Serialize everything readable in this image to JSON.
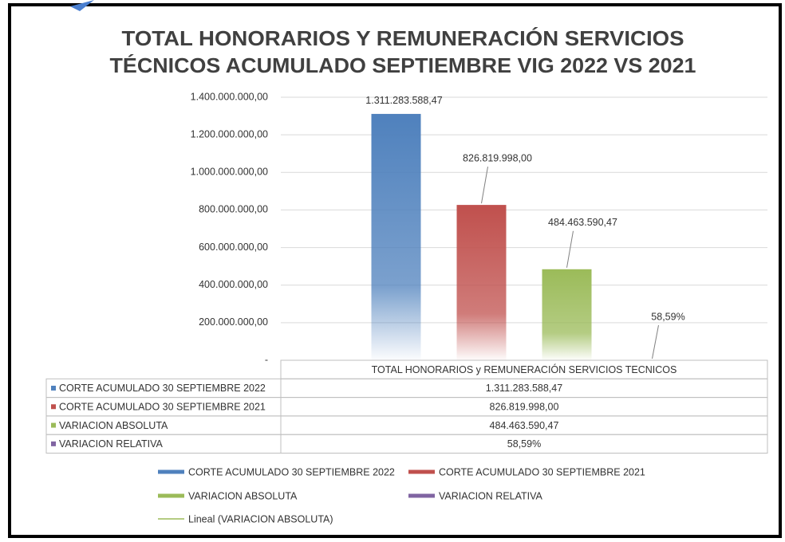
{
  "chart_data": {
    "type": "bar",
    "title": [
      "TOTAL HONORARIOS Y REMUNERACIÓN SERVICIOS",
      "TÉCNICOS ACUMULADO SEPTIEMBRE VIG 2022 VS 2021"
    ],
    "categories": [
      "TOTAL HONORARIOS y REMUNERACIÓN SERVICIOS TECNICOS"
    ],
    "series": [
      {
        "name": "CORTE ACUMULADO  30 SEPTIEMBRE 2022",
        "color": "#4f81bd",
        "values": [
          1311283588.47
        ],
        "value_labels": [
          "1.311.283.588,47"
        ]
      },
      {
        "name": "CORTE ACUMULADO  30 SEPTIEMBRE 2021",
        "color": "#c0504d",
        "values": [
          826819998.0
        ],
        "value_labels": [
          "826.819.998,00"
        ]
      },
      {
        "name": "VARIACION ABSOLUTA",
        "color": "#9bbb59",
        "values": [
          484463590.47
        ],
        "value_labels": [
          "484.463.590,47"
        ]
      },
      {
        "name": "VARIACION RELATIVA",
        "color": "#8064a2",
        "values": [
          0.5859
        ],
        "value_labels": [
          "58,59%"
        ]
      }
    ],
    "trendline": {
      "name": "Lineal (VARIACION ABSOLUTA)",
      "color": "#9bbb59"
    },
    "ylim": [
      0,
      1400000000
    ],
    "yticks": [
      {
        "value": 0,
        "label": "-"
      },
      {
        "value": 200000000,
        "label": "200.000.000,00"
      },
      {
        "value": 400000000,
        "label": "400.000.000,00"
      },
      {
        "value": 600000000,
        "label": "600.000.000,00"
      },
      {
        "value": 800000000,
        "label": "800.000.000,00"
      },
      {
        "value": 1000000000,
        "label": "1.000.000.000,00"
      },
      {
        "value": 1200000000,
        "label": "1.200.000.000,00"
      },
      {
        "value": 1400000000,
        "label": "1.400.000.000,00"
      }
    ],
    "grid": true
  }
}
